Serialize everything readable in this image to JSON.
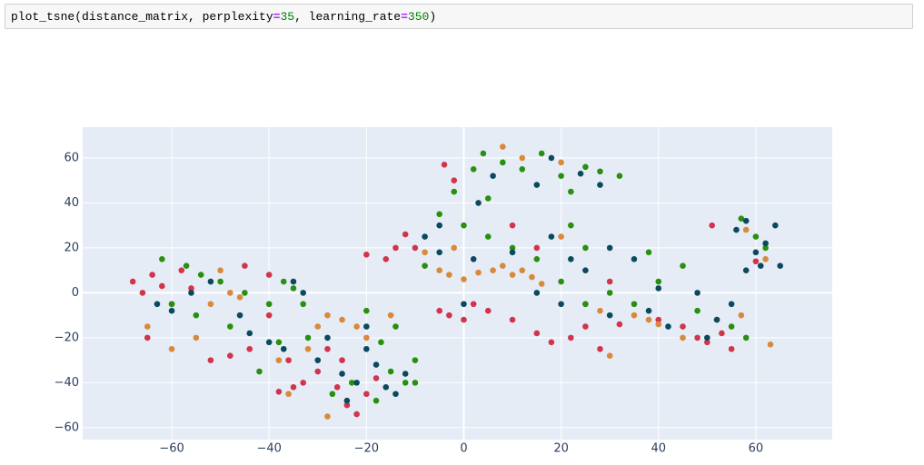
{
  "cell": {
    "tokens": [
      "plot_tsne(distance_matrix, perplexity",
      "=",
      "35",
      ", learning_rate",
      "=",
      "350",
      ")"
    ]
  },
  "chart_data": {
    "type": "scatter",
    "grid": true,
    "background": "#e5ecf6",
    "xlim": [
      -78.3,
      75.7
    ],
    "ylim": [
      -65.3,
      73.7
    ],
    "xticks": [
      {
        "value": -60,
        "label": "−60"
      },
      {
        "value": -40,
        "label": "−40"
      },
      {
        "value": -20,
        "label": "−20"
      },
      0,
      20,
      40,
      60
    ],
    "yticks": [
      {
        "value": -60,
        "label": "−60"
      },
      {
        "value": -40,
        "label": "−40"
      },
      {
        "value": -20,
        "label": "−20"
      },
      0,
      20,
      40,
      60
    ],
    "series": [
      {
        "color": "#d1344b",
        "x": [
          -68,
          -66,
          -64,
          -62,
          -60,
          -58,
          -56,
          -65,
          -52,
          -48,
          -44,
          -40,
          -36,
          -33,
          -30,
          -28,
          -26,
          -24,
          -22,
          -20,
          -18,
          -35,
          -38,
          -45,
          -40,
          -20,
          -16,
          -14,
          -12,
          -25,
          -5,
          -3,
          0,
          2,
          5,
          10,
          15,
          18,
          22,
          25,
          28,
          32,
          45,
          48,
          50,
          53,
          55,
          51,
          60,
          -4,
          -2,
          10,
          15,
          -10,
          30,
          40
        ],
        "y": [
          5,
          0,
          8,
          3,
          -5,
          10,
          2,
          -20,
          -30,
          -28,
          -25,
          -10,
          -30,
          -40,
          -35,
          -25,
          -42,
          -50,
          -54,
          -45,
          -38,
          -42,
          -44,
          12,
          8,
          17,
          15,
          20,
          26,
          -30,
          -8,
          -10,
          -12,
          -5,
          -8,
          -12,
          -18,
          -22,
          -20,
          -15,
          -25,
          -14,
          -15,
          -20,
          -22,
          -18,
          -25,
          30,
          14,
          57,
          50,
          30,
          20,
          20,
          5,
          -12
        ]
      },
      {
        "color": "#d9893a",
        "x": [
          -55,
          -50,
          -48,
          -46,
          -52,
          -60,
          -38,
          -30,
          -28,
          -25,
          -22,
          -28,
          -32,
          -20,
          -36,
          -5,
          -3,
          0,
          3,
          6,
          8,
          10,
          12,
          14,
          16,
          -8,
          -2,
          8,
          12,
          20,
          25,
          28,
          30,
          35,
          38,
          40,
          45,
          52,
          57,
          63,
          58,
          62,
          20,
          -15,
          -65
        ],
        "y": [
          -20,
          10,
          0,
          -2,
          -5,
          -25,
          -30,
          -15,
          -10,
          -12,
          -15,
          -55,
          -25,
          -20,
          -45,
          10,
          8,
          6,
          9,
          10,
          12,
          8,
          10,
          7,
          4,
          18,
          20,
          65,
          60,
          58,
          -5,
          -8,
          -28,
          -10,
          -12,
          -14,
          -20,
          -12,
          -10,
          -23,
          28,
          15,
          25,
          -10,
          -15
        ]
      },
      {
        "color": "#29900f",
        "x": [
          -62,
          -57,
          -54,
          -50,
          -45,
          -40,
          -37,
          -33,
          -35,
          -55,
          -48,
          -42,
          -38,
          -32,
          -27,
          -23,
          -18,
          -15,
          -12,
          -10,
          -17,
          -14,
          -20,
          -2,
          2,
          4,
          8,
          12,
          16,
          20,
          25,
          28,
          32,
          22,
          5,
          -5,
          0,
          5,
          10,
          15,
          -8,
          22,
          25,
          20,
          25,
          30,
          35,
          40,
          38,
          45,
          48,
          55,
          58,
          60,
          62,
          57,
          -60,
          -10
        ],
        "y": [
          15,
          12,
          8,
          5,
          0,
          -5,
          5,
          -5,
          2,
          -10,
          -15,
          -35,
          -22,
          -20,
          -45,
          -40,
          -48,
          -35,
          -40,
          -30,
          -22,
          -15,
          -8,
          45,
          55,
          62,
          58,
          55,
          62,
          52,
          56,
          54,
          52,
          45,
          42,
          35,
          30,
          25,
          20,
          15,
          12,
          30,
          20,
          5,
          -5,
          0,
          -5,
          5,
          18,
          12,
          -8,
          -15,
          -20,
          25,
          20,
          33,
          -5,
          -40
        ]
      },
      {
        "color": "#0b4a5e",
        "x": [
          -63,
          -60,
          -56,
          -52,
          -46,
          -44,
          -40,
          -37,
          -35,
          -33,
          -30,
          -25,
          -22,
          -20,
          -18,
          -16,
          -14,
          -12,
          -24,
          -28,
          -20,
          -8,
          -5,
          0,
          3,
          6,
          15,
          18,
          24,
          28,
          -5,
          2,
          10,
          18,
          22,
          20,
          15,
          25,
          30,
          35,
          38,
          42,
          40,
          48,
          52,
          55,
          50,
          56,
          58,
          60,
          62,
          65,
          61,
          64,
          58,
          30
        ],
        "y": [
          -5,
          -8,
          0,
          5,
          -10,
          -18,
          -22,
          -25,
          5,
          0,
          -30,
          -36,
          -40,
          -25,
          -32,
          -42,
          -45,
          -36,
          -48,
          -20,
          -15,
          25,
          30,
          -5,
          40,
          52,
          48,
          60,
          53,
          48,
          18,
          15,
          18,
          25,
          15,
          -5,
          0,
          10,
          -10,
          15,
          -8,
          -15,
          2,
          0,
          -12,
          -5,
          -20,
          28,
          32,
          18,
          22,
          12,
          12,
          30,
          10,
          20
        ]
      }
    ]
  }
}
